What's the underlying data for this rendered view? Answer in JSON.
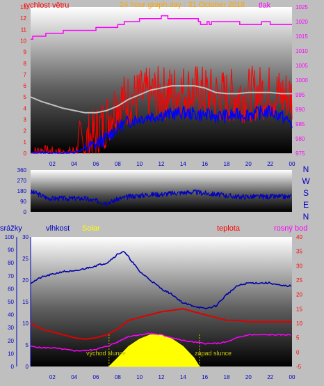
{
  "colors": {
    "background": "#bfbfbf",
    "wind": "#ff0000",
    "gust_bg": "#c0c0c0",
    "avg_wind": "#0000ff",
    "pressure": "#ff00ff",
    "direction": "#0000c0",
    "humidity": "#0000aa",
    "solar": "#ffff00",
    "temperature": "#e00000",
    "dewpoint": "#ff00ff",
    "rain": "#0000ff",
    "label_red": "#ff0000",
    "label_orange": "#ffa500",
    "label_blue": "#0000c0",
    "label_yellow": "#ffff00",
    "label_magenta": "#ff00ff"
  },
  "chart_data": [
    {
      "type": "line",
      "title": "24 hour graph day : 31 October 2018",
      "left_axis_label": "rychlost větru",
      "right_axis_label": "tlak",
      "x_ticks": [
        "02",
        "04",
        "06",
        "08",
        "10",
        "12",
        "14",
        "16",
        "18",
        "20",
        "22",
        "00"
      ],
      "y_left_ticks": [
        "0",
        "1",
        "2",
        "3",
        "4",
        "5",
        "6",
        "7",
        "8",
        "9",
        "10",
        "11",
        "12",
        "13"
      ],
      "y_left_range": [
        0,
        13
      ],
      "y_right_ticks": [
        "975",
        "980",
        "985",
        "990",
        "995",
        "1000",
        "1005",
        "1010",
        "1015",
        "1020",
        "1025"
      ],
      "y_right_range": [
        975,
        1025
      ],
      "x_range": [
        0,
        24
      ],
      "grid": false,
      "series": [
        {
          "name": "tlak",
          "axis": "right",
          "x": [
            0,
            0.2,
            1.0,
            1.4,
            2.0,
            2.6,
            3.0,
            4.0,
            5.0,
            6.0,
            6.4,
            7.0,
            8.0,
            8.6,
            9.0,
            9.6,
            10.0,
            10.4,
            11.0,
            12.0,
            12.4,
            12.6,
            13.6,
            14.0,
            15.0,
            15.4,
            15.6,
            16.2,
            16.4,
            16.6,
            17.0,
            19.0,
            19.2,
            21.0,
            21.2,
            22.0,
            24.0
          ],
          "values": [
            1014,
            1015,
            1015,
            1016,
            1016,
            1016,
            1017,
            1017,
            1017,
            1018,
            1018,
            1018,
            1019,
            1020,
            1020,
            1020,
            1021,
            1021,
            1021,
            1022,
            1022,
            1021,
            1021,
            1021,
            1021,
            1020,
            1019,
            1020,
            1019,
            1020,
            1020,
            1020,
            1019,
            1019,
            1020,
            1019,
            1019
          ]
        },
        {
          "name": "avg_wind_light",
          "axis": "left",
          "x": [
            0,
            1,
            2,
            3,
            4,
            5,
            6,
            7,
            8,
            9,
            10,
            11,
            12,
            13,
            14,
            15,
            16,
            17,
            18,
            19,
            20,
            21,
            22,
            23,
            24
          ],
          "values": [
            5.0,
            4.6,
            4.3,
            4.0,
            3.8,
            3.6,
            3.6,
            3.8,
            4.2,
            4.8,
            5.2,
            5.6,
            5.8,
            6.0,
            6.0,
            6.0,
            5.8,
            5.4,
            5.3,
            5.3,
            5.4,
            5.4,
            5.4,
            5.3,
            5.3
          ]
        },
        {
          "name": "wind",
          "axis": "left",
          "x": [
            0,
            1,
            2,
            3,
            4,
            5,
            6,
            7,
            8,
            9,
            10,
            11,
            12,
            13,
            14,
            15,
            16,
            17,
            18,
            19,
            20,
            21,
            22,
            23,
            24
          ],
          "values": [
            0.0,
            0.3,
            0.1,
            0.0,
            0.2,
            0.9,
            1.8,
            3.0,
            4.6,
            4.7,
            5.0,
            5.2,
            5.3,
            5.4,
            5.5,
            5.5,
            5.3,
            5.1,
            5.0,
            5.2,
            5.2,
            5.4,
            5.4,
            5.1,
            5.0
          ]
        },
        {
          "name": "avg_wind_blue",
          "axis": "left",
          "x": [
            0,
            1,
            2,
            3,
            4,
            5,
            6,
            7,
            8,
            9,
            10,
            11,
            12,
            13,
            14,
            15,
            16,
            17,
            18,
            19,
            20,
            21,
            22,
            23,
            24
          ],
          "values": [
            0.0,
            0.1,
            0.0,
            0.0,
            0.1,
            0.4,
            0.8,
            1.4,
            2.3,
            2.8,
            3.1,
            3.3,
            3.4,
            3.5,
            3.6,
            3.5,
            3.4,
            3.3,
            3.3,
            3.4,
            3.5,
            3.6,
            3.7,
            3.3,
            2.6
          ]
        }
      ]
    },
    {
      "type": "line",
      "y_ticks": [
        "360",
        "270",
        "180",
        "90",
        "0"
      ],
      "y_range": [
        0,
        360
      ],
      "right_labels": [
        "N",
        "W",
        "S",
        "E",
        "N"
      ],
      "x_range": [
        0,
        24
      ],
      "series": [
        {
          "name": "direction",
          "x": [
            0,
            0.5,
            1,
            1.5,
            2,
            3,
            4,
            5,
            5.5,
            6,
            6.5,
            7,
            7.5,
            8,
            9,
            10,
            11,
            12,
            13,
            14,
            15,
            16,
            17,
            18,
            19,
            20,
            21,
            22,
            23,
            24
          ],
          "values": [
            170,
            160,
            140,
            120,
            115,
            115,
            115,
            115,
            100,
            95,
            85,
            80,
            90,
            110,
            130,
            140,
            150,
            150,
            160,
            165,
            170,
            160,
            150,
            140,
            130,
            130,
            130,
            130,
            130,
            130
          ]
        }
      ]
    },
    {
      "type": "line",
      "labels": [
        "srážky",
        "vlhkost",
        "Solar",
        "teplota",
        "rosný bod"
      ],
      "y_rain_ticks": [
        "0",
        "10",
        "20",
        "30",
        "40",
        "50",
        "60",
        "70",
        "80",
        "90",
        "100"
      ],
      "y_rain_range": [
        0,
        100
      ],
      "y_humidity_ticks": [
        "0",
        "5",
        "10",
        "15",
        "20",
        "25",
        "30"
      ],
      "y_humidity_range": [
        0,
        30
      ],
      "y_temp_ticks": [
        "-5",
        "0",
        "5",
        "10",
        "15",
        "20",
        "25",
        "30",
        "35",
        "40"
      ],
      "y_temp_range": [
        -5,
        40
      ],
      "x_ticks": [
        "02",
        "04",
        "06",
        "08",
        "10",
        "12",
        "14",
        "16",
        "18",
        "20",
        "22",
        "00"
      ],
      "x_range": [
        0,
        24
      ],
      "annotations": [
        {
          "text": "východ slunce",
          "x": 7.2
        },
        {
          "text": "západ slunce",
          "x": 15.5
        }
      ],
      "series": [
        {
          "name": "vlhkost",
          "axis": "temp",
          "x": [
            0,
            1,
            2,
            3,
            4,
            5,
            6,
            7,
            8,
            8.5,
            9,
            10,
            11,
            12,
            13,
            14,
            15,
            16,
            17,
            18,
            19,
            20,
            21,
            22,
            23,
            24
          ],
          "values": [
            24,
            26,
            27,
            28,
            28,
            29,
            30,
            31,
            34,
            35,
            33,
            28,
            25,
            22,
            20,
            17,
            16,
            15,
            16,
            20,
            23,
            24,
            24,
            24,
            23,
            23
          ]
        },
        {
          "name": "teplota",
          "axis": "temp",
          "x": [
            0,
            1,
            2,
            3,
            4,
            5,
            6,
            7,
            8,
            9,
            10,
            11,
            12,
            13,
            14,
            15,
            16,
            17,
            18,
            19,
            20,
            21,
            22,
            23,
            24
          ],
          "values": [
            10,
            8,
            7,
            6,
            5,
            4.5,
            5,
            6,
            8,
            11,
            12,
            13,
            14,
            14.5,
            15,
            14,
            13,
            12,
            11,
            11,
            10.5,
            10.5,
            10.5,
            10.5,
            10.5
          ]
        },
        {
          "name": "rosný bod",
          "axis": "temp",
          "x": [
            0,
            1,
            2,
            3,
            4,
            5,
            6,
            7,
            8,
            9,
            10,
            11,
            12,
            13,
            14,
            15,
            16,
            17,
            18,
            19,
            20,
            21,
            22,
            23,
            24
          ],
          "values": [
            2,
            1.5,
            1.5,
            1,
            0.5,
            0.5,
            1,
            2,
            3.5,
            5.5,
            6,
            6.5,
            6,
            5,
            4,
            3.5,
            3,
            3,
            3.5,
            5,
            6,
            6,
            6,
            6,
            6
          ]
        },
        {
          "name": "Solar",
          "axis": "temp",
          "x": [
            7.2,
            8,
            9,
            10,
            11,
            12,
            13,
            14,
            15,
            15.5
          ],
          "values": [
            -5,
            -2,
            2,
            4.5,
            6,
            6,
            4.5,
            2,
            -2,
            -5
          ]
        }
      ]
    }
  ]
}
